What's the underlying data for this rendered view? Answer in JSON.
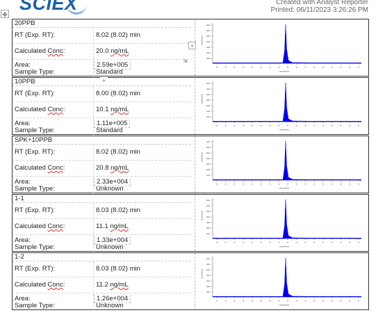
{
  "header": {
    "logo_text": "SCIEX",
    "created_line": "Created with Analyst Reporter",
    "printed_line": "Printed: 06/11/2023 3:26:26 PM",
    "move_handle_glyph": "✥"
  },
  "labels": {
    "rt": "RT (Exp. RT):",
    "conc_prefix": "Calculated ",
    "conc_word": "Conc",
    "conc_suffix": ":",
    "area": "Area:",
    "sample_type": "Sample Type:",
    "plus": "+"
  },
  "colors": {
    "peak": "#0000ee",
    "logo": "#1b5fab",
    "axis": "#8a8a8a"
  },
  "samples": [
    {
      "name": "20PPB",
      "rt": "8.02 (8.02) min",
      "conc_num": "20.0",
      "conc_unit": "ng/mL",
      "area": "2.59e+005",
      "type": "Standard"
    },
    {
      "name": "10PPB",
      "rt": "8.00 (8.02) min",
      "conc_num": "10.1",
      "conc_unit": "ng/mL",
      "area": "1.11e+005",
      "type": "Standard"
    },
    {
      "name": "SPK+10PPB",
      "rt": "8.02 (8.02) min",
      "conc_num": "20.8",
      "conc_unit": "ng/mL",
      "area": "2.33e+004",
      "type": "Unknown"
    },
    {
      "name": "1-1",
      "rt": "8.03 (8.02) min",
      "conc_num": "11.1",
      "conc_unit": "ng/mL",
      "area": "1.33e+004",
      "type": "Unknown"
    },
    {
      "name": "1-2",
      "rt": "8.03 (8.02) min",
      "conc_num": "11.2",
      "conc_unit": "ng/mL",
      "area": "1.26e+004",
      "type": "Unknown"
    }
  ]
}
